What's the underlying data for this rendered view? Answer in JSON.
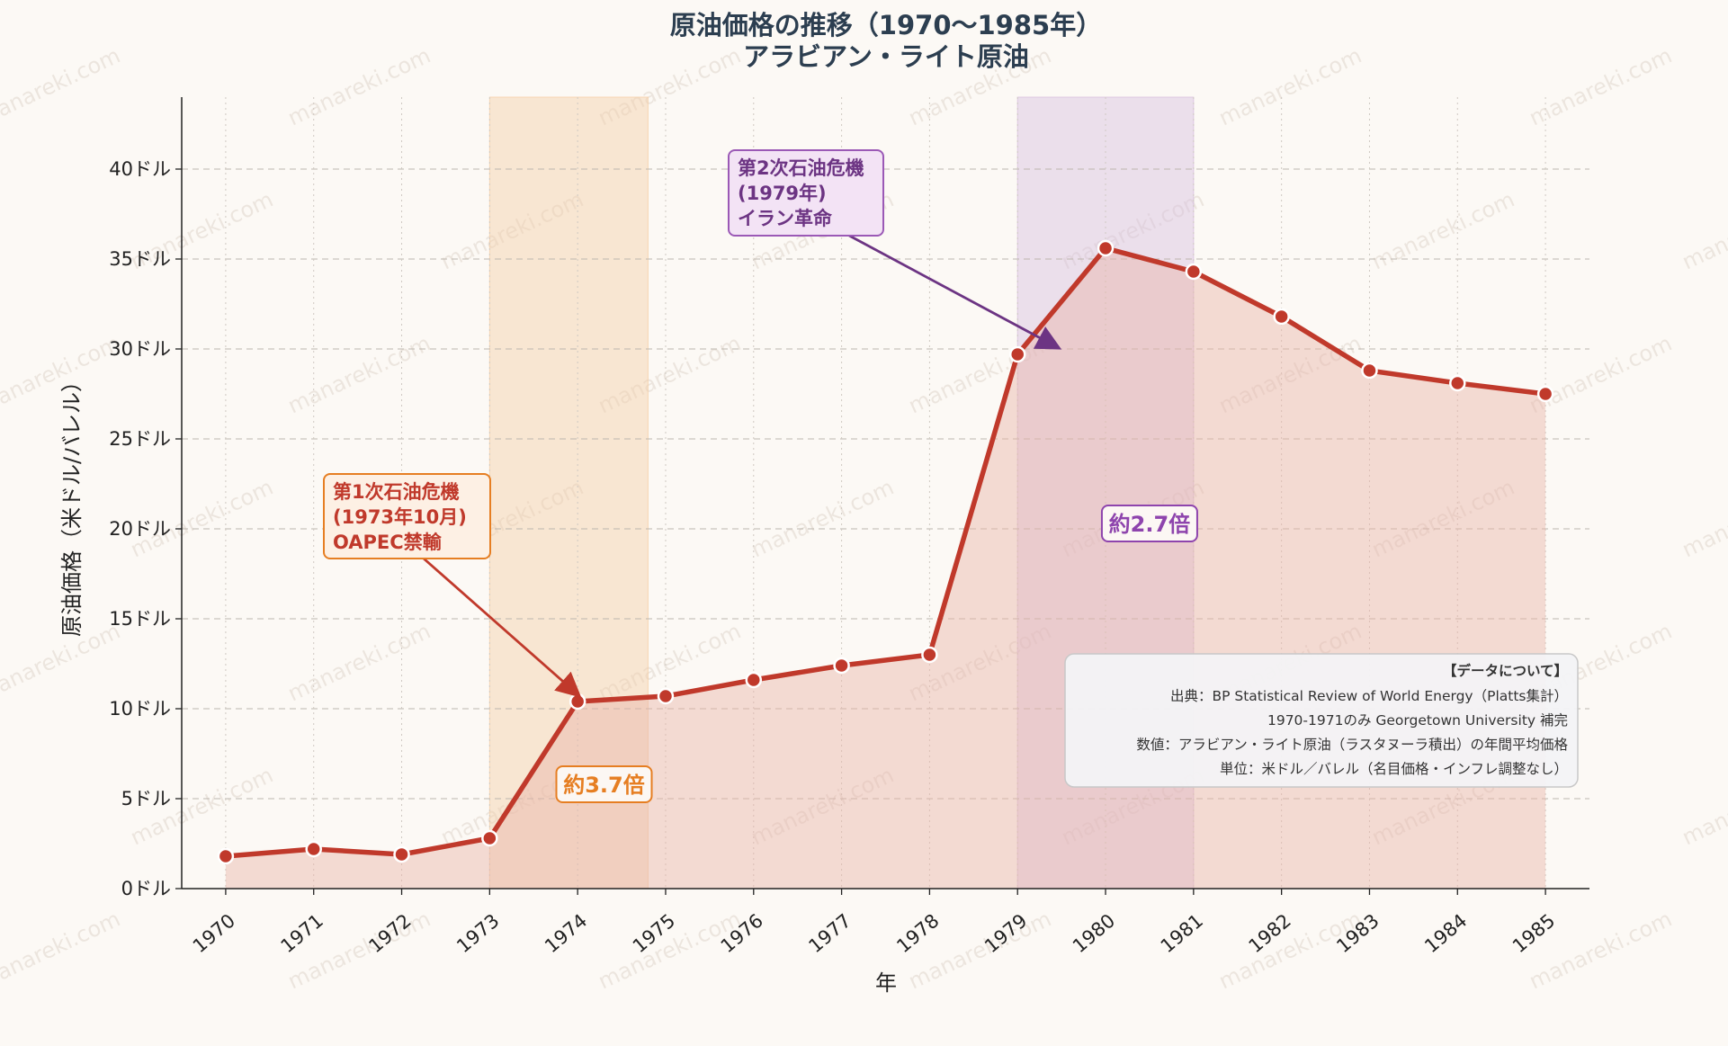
{
  "chart_data": {
    "type": "line",
    "title": "原油価格の推移（1970〜1985年）",
    "subtitle": "アラビアン・ライト原油",
    "xlabel": "年",
    "ylabel": "原油価格（米ドル/バレル）",
    "ylim": [
      0,
      44
    ],
    "xlim": [
      1969.5,
      1985.5
    ],
    "y_ticks": [
      0,
      5,
      10,
      15,
      20,
      25,
      30,
      35,
      40
    ],
    "y_tick_suffix": "ドル",
    "grid": true,
    "x": [
      1970,
      1971,
      1972,
      1973,
      1974,
      1975,
      1976,
      1977,
      1978,
      1979,
      1980,
      1981,
      1982,
      1983,
      1984,
      1985
    ],
    "series": [
      {
        "values": [
          1.8,
          2.2,
          1.9,
          2.8,
          10.4,
          10.7,
          11.6,
          12.4,
          13.0,
          29.7,
          35.6,
          34.3,
          31.8,
          28.8,
          28.1,
          27.5
        ]
      }
    ],
    "shaded_regions": [
      {
        "x": [
          1973,
          1974.8
        ],
        "color": "#f5cfa8"
      },
      {
        "x": [
          1979,
          1981
        ],
        "color": "#d7bfe0"
      }
    ],
    "annotations": [
      {
        "lines": [
          "第1次石油危機",
          "(1973年10月)",
          "OAPEC禁輸"
        ],
        "color": "#c0392b",
        "border": "#e67e22",
        "fill": "#fdf0e4",
        "target_x": 1974,
        "target_y": 10.4
      },
      {
        "lines": [
          "第2次石油危機",
          "(1979年)",
          "イラン革命"
        ],
        "color": "#6c3483",
        "border": "#9b59b6",
        "fill": "#f3e3f5",
        "target_x": 1979.45,
        "target_y": 29.7
      }
    ],
    "multipliers": [
      {
        "text": "約3.7倍",
        "color": "#e67e22",
        "x": 1974.3,
        "y": 5.8
      },
      {
        "text": "約2.7倍",
        "color": "#8e44ad",
        "x": 1980.5,
        "y": 20.3
      }
    ],
    "notes": {
      "heading": "【データについて】",
      "lines": [
        "出典：BP Statistical Review of World Energy（Platts集計）",
        "1970-1971のみ Georgetown University 補完",
        "数値：アラビアン・ライト原油（ラスタヌーラ積出）の年間平均価格",
        "単位：米ドル／バレル（名目価格・インフレ調整なし）"
      ]
    },
    "colors": {
      "line": "#c0392b",
      "fill": "#e8b4a8",
      "marker_edge": "#ffffff"
    }
  },
  "watermark": "manareki.com"
}
